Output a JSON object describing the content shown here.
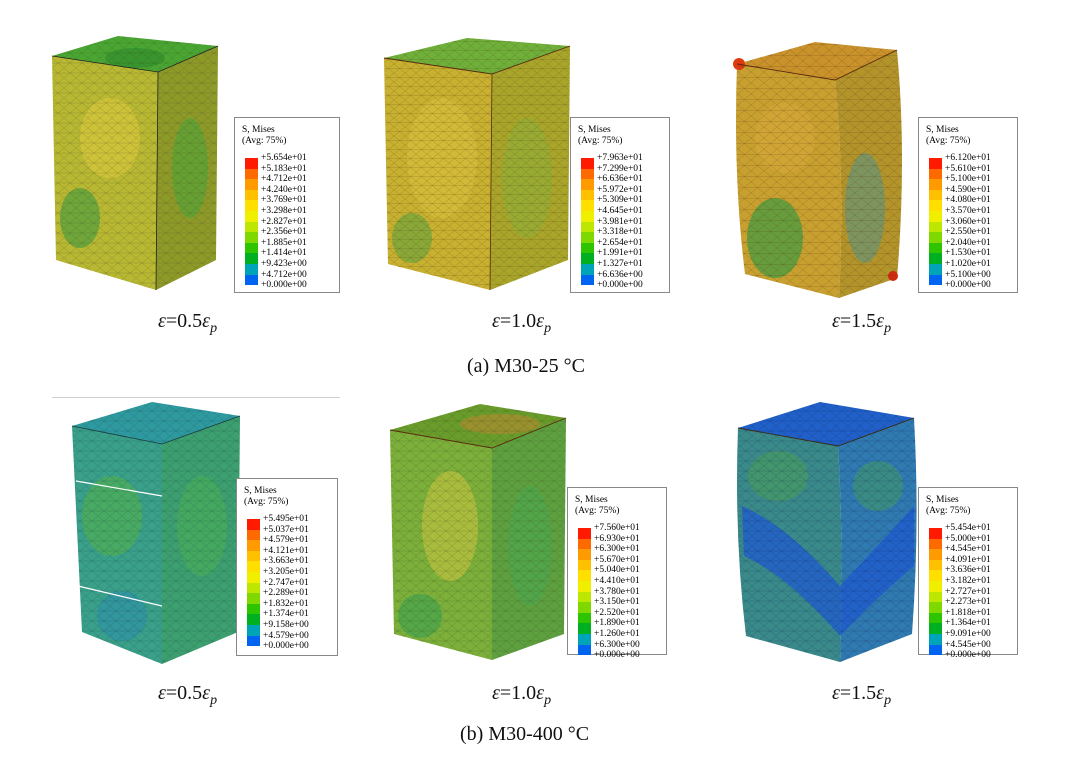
{
  "legend_colors": [
    "#ff1a00",
    "#ff6a00",
    "#ff9a00",
    "#ffc000",
    "#ffdf00",
    "#f1ef00",
    "#bde700",
    "#7fd800",
    "#2fc400",
    "#00b020",
    "#00b070",
    "#00a4b8",
    "#0064f0"
  ],
  "panels": [
    {
      "legend": {
        "title": "S, Mises",
        "avg": "(Avg: 75%)",
        "values": [
          "+5.654e+01",
          "+5.183e+01",
          "+4.712e+01",
          "+4.240e+01",
          "+3.769e+01",
          "+3.298e+01",
          "+2.827e+01",
          "+2.356e+01",
          "+1.885e+01",
          "+1.414e+01",
          "+9.423e+00",
          "+4.712e+00",
          "+0.000e+00"
        ]
      },
      "strain": {
        "a": "ε",
        "b": "=0.5",
        "c": "ε",
        "d": "p"
      }
    },
    {
      "legend": {
        "title": "S, Mises",
        "avg": "(Avg: 75%)",
        "values": [
          "+7.963e+01",
          "+7.299e+01",
          "+6.636e+01",
          "+5.972e+01",
          "+5.309e+01",
          "+4.645e+01",
          "+3.981e+01",
          "+3.318e+01",
          "+2.654e+01",
          "+1.991e+01",
          "+1.327e+01",
          "+6.636e+00",
          "+0.000e+00"
        ]
      },
      "strain": {
        "a": "ε",
        "b": "=1.0",
        "c": "ε",
        "d": "p"
      }
    },
    {
      "legend": {
        "title": "S, Mises",
        "avg": "(Avg: 75%)",
        "values": [
          "+6.120e+01",
          "+5.610e+01",
          "+5.100e+01",
          "+4.590e+01",
          "+4.080e+01",
          "+3.570e+01",
          "+3.060e+01",
          "+2.550e+01",
          "+2.040e+01",
          "+1.530e+01",
          "+1.020e+01",
          "+5.100e+00",
          "+0.000e+00"
        ]
      },
      "strain": {
        "a": "ε",
        "b": "=1.5",
        "c": "ε",
        "d": "p"
      }
    },
    {
      "legend": {
        "title": "S, Mises",
        "avg": "(Avg: 75%)",
        "values": [
          "+5.495e+01",
          "+5.037e+01",
          "+4.579e+01",
          "+4.121e+01",
          "+3.663e+01",
          "+3.205e+01",
          "+2.747e+01",
          "+2.289e+01",
          "+1.832e+01",
          "+1.374e+01",
          "+9.158e+00",
          "+4.579e+00",
          "+0.000e+00"
        ]
      },
      "strain": {
        "a": "ε",
        "b": "=0.5",
        "c": "ε",
        "d": "p"
      }
    },
    {
      "legend": {
        "title": "S, Mises",
        "avg": "(Avg: 75%)",
        "values": [
          "+7.560e+01",
          "+6.930e+01",
          "+6.300e+01",
          "+5.670e+01",
          "+5.040e+01",
          "+4.410e+01",
          "+3.780e+01",
          "+3.150e+01",
          "+2.520e+01",
          "+1.890e+01",
          "+1.260e+01",
          "+6.300e+00",
          "+0.000e+00"
        ]
      },
      "strain": {
        "a": "ε",
        "b": "=1.0",
        "c": "ε",
        "d": "p"
      }
    },
    {
      "legend": {
        "title": "S, Mises",
        "avg": "(Avg: 75%)",
        "values": [
          "+5.454e+01",
          "+5.000e+01",
          "+4.545e+01",
          "+4.091e+01",
          "+3.636e+01",
          "+3.182e+01",
          "+2.727e+01",
          "+2.273e+01",
          "+1.818e+01",
          "+1.364e+01",
          "+9.091e+00",
          "+4.545e+00",
          "+0.000e+00"
        ]
      },
      "strain": {
        "a": "ε",
        "b": "=1.5",
        "c": "ε",
        "d": "p"
      }
    }
  ],
  "captions": {
    "a": "(a) M30-25 °C",
    "b": "(b) M30-400 °C"
  }
}
